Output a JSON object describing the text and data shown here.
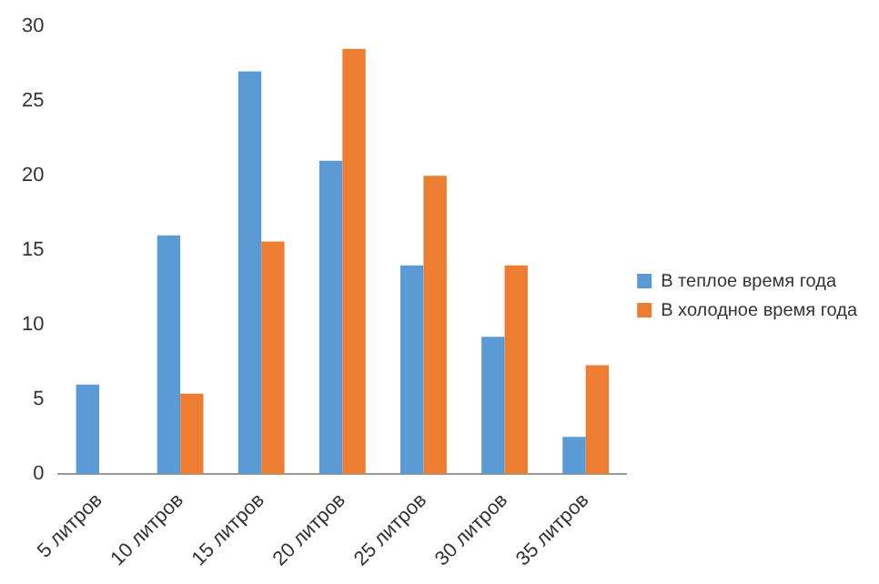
{
  "chart_data": {
    "type": "bar",
    "categories": [
      "5 литров",
      "10 литров",
      "15 литров",
      "20 литров",
      "25 литров",
      "30 литров",
      "35 литров"
    ],
    "series": [
      {
        "name": "В теплое время года",
        "color": "#5b9bd5",
        "values": [
          6,
          16,
          27,
          21,
          14,
          9.2,
          2.5
        ]
      },
      {
        "name": "В холодное время года",
        "color": "#ed7d31",
        "values": [
          null,
          5.4,
          15.6,
          28.5,
          20,
          14,
          7.3
        ]
      }
    ],
    "ylim": [
      0,
      30
    ],
    "yticks": [
      0,
      5,
      10,
      15,
      20,
      25,
      30
    ],
    "grid": false,
    "legend": "right"
  }
}
